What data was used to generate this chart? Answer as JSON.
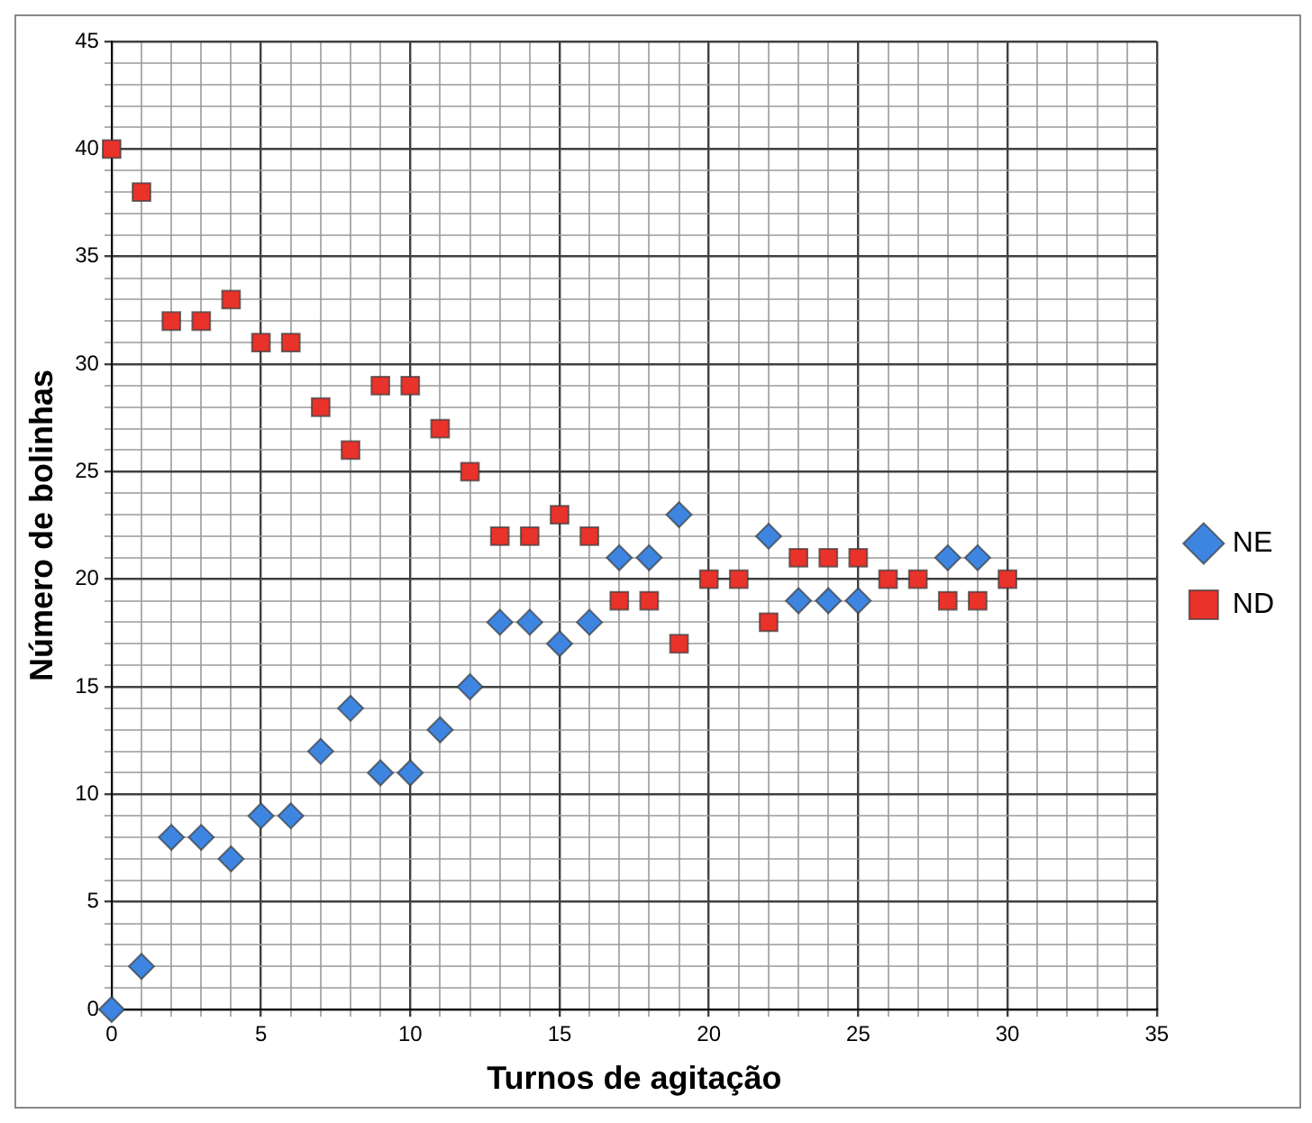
{
  "chart_data": {
    "type": "scatter",
    "xlabel": "Turnos de agitação",
    "ylabel": "Número de bolinhas",
    "x": [
      0,
      1,
      2,
      3,
      4,
      5,
      6,
      7,
      8,
      9,
      10,
      11,
      12,
      13,
      14,
      15,
      16,
      17,
      18,
      19,
      20,
      21,
      22,
      23,
      24,
      25,
      26,
      27,
      28,
      29,
      30
    ],
    "series": [
      {
        "name": "NE",
        "color": "#3d85e0",
        "marker": "diamond",
        "values": [
          0,
          2,
          8,
          8,
          7,
          9,
          9,
          12,
          14,
          11,
          11,
          13,
          15,
          18,
          18,
          17,
          18,
          21,
          21,
          23,
          null,
          null,
          22,
          19,
          19,
          19,
          null,
          null,
          21,
          21,
          null
        ]
      },
      {
        "name": "ND",
        "color": "#e8322a",
        "marker": "square",
        "values": [
          40,
          38,
          32,
          32,
          33,
          31,
          31,
          28,
          26,
          29,
          29,
          27,
          25,
          22,
          22,
          23,
          22,
          19,
          19,
          17,
          20,
          20,
          18,
          21,
          21,
          21,
          20,
          20,
          19,
          19,
          20
        ]
      }
    ],
    "xlim": [
      0,
      35
    ],
    "xticks": [
      0,
      5,
      10,
      15,
      20,
      25,
      30,
      35
    ],
    "ylim": [
      0,
      45
    ],
    "yticks": [
      0,
      5,
      10,
      15,
      20,
      25,
      30,
      35,
      40,
      45
    ],
    "grid": true,
    "legend": "right"
  }
}
